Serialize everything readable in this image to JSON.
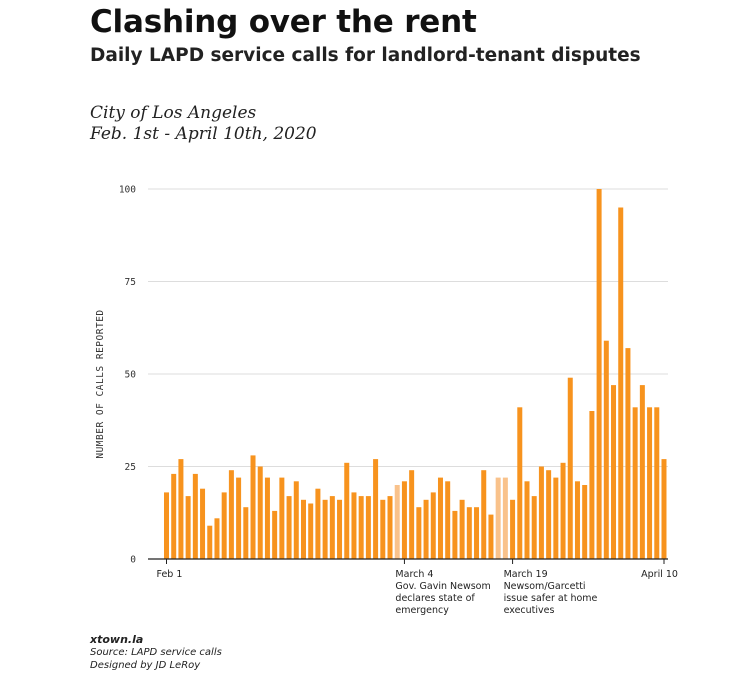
{
  "header": {
    "title": "Clashing over the rent",
    "subtitle": "Daily LAPD service calls for landlord-tenant disputes",
    "place": "City of Los Angeles",
    "date_range": "Feb. 1st - April 10th, 2020"
  },
  "footer": {
    "brand": "xtown.la",
    "source": "Source: LAPD service calls",
    "credit": "Designed by JD LeRoy"
  },
  "colors": {
    "bar": "#F7931E",
    "bar_highlight": "#F9C28B",
    "grid": "#DDDDDD",
    "axis": "#222222"
  },
  "chart_data": {
    "type": "bar",
    "ylabel": "NUMBER OF CALLS REPORTED",
    "ylim": [
      0,
      100
    ],
    "yticks": [
      0,
      25,
      50,
      75,
      100
    ],
    "grid": true,
    "x_start_label": "Feb 1",
    "x_end_label": "April 10",
    "values": [
      18,
      23,
      27,
      17,
      23,
      19,
      9,
      11,
      18,
      24,
      22,
      14,
      28,
      25,
      22,
      13,
      22,
      17,
      21,
      16,
      15,
      19,
      16,
      17,
      16,
      26,
      18,
      17,
      17,
      27,
      16,
      17,
      20,
      21,
      24,
      14,
      16,
      18,
      22,
      21,
      13,
      16,
      14,
      14,
      24,
      12,
      22,
      22,
      16,
      41,
      21,
      17,
      25,
      24,
      22,
      26,
      49,
      21,
      20,
      40,
      100,
      59,
      47,
      95,
      57,
      41,
      47,
      41,
      41,
      27
    ],
    "highlight_indices": [
      32,
      46,
      47
    ],
    "annotations": [
      {
        "index": 33,
        "date": "March 4",
        "lines": [
          "Gov. Gavin Newsom",
          "declares state of",
          "emergency"
        ]
      },
      {
        "index": 48,
        "date": "March 19",
        "lines": [
          "Newsom/Garcetti",
          "issue safer at home",
          "executives"
        ]
      }
    ]
  }
}
